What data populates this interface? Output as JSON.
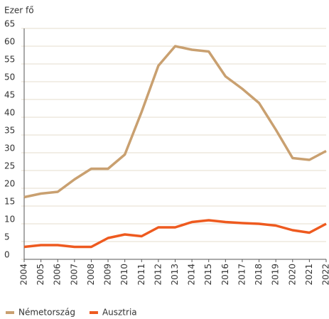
{
  "chart_data": {
    "type": "line",
    "y_label": "Ezer fő",
    "categories": [
      "2004",
      "2005",
      "2006",
      "2007",
      "2008",
      "2009",
      "2010",
      "2011",
      "2012",
      "2013",
      "2014",
      "2015",
      "2016",
      "2017",
      "2018",
      "2019",
      "2020",
      "2021",
      "2022"
    ],
    "series": [
      {
        "name": "Németország",
        "color": "#c9a070",
        "values": [
          17.5,
          18.5,
          19,
          22.5,
          25.5,
          25.5,
          29.5,
          41.5,
          54.5,
          60,
          59,
          58.5,
          51.5,
          48,
          44,
          36.5,
          28.5,
          28,
          30.5
        ]
      },
      {
        "name": "Ausztria",
        "color": "#ee5a1f",
        "values": [
          3.5,
          4,
          4,
          3.5,
          3.5,
          6,
          7,
          6.5,
          9,
          9,
          10.5,
          11,
          10.5,
          10.2,
          10,
          9.5,
          8.2,
          7.5,
          10
        ]
      }
    ],
    "ylim": [
      0,
      65
    ],
    "yticks": [
      0,
      5,
      10,
      15,
      20,
      25,
      30,
      35,
      40,
      45,
      50,
      55,
      60,
      65
    ],
    "grid": true,
    "legend": "bottom-left"
  }
}
